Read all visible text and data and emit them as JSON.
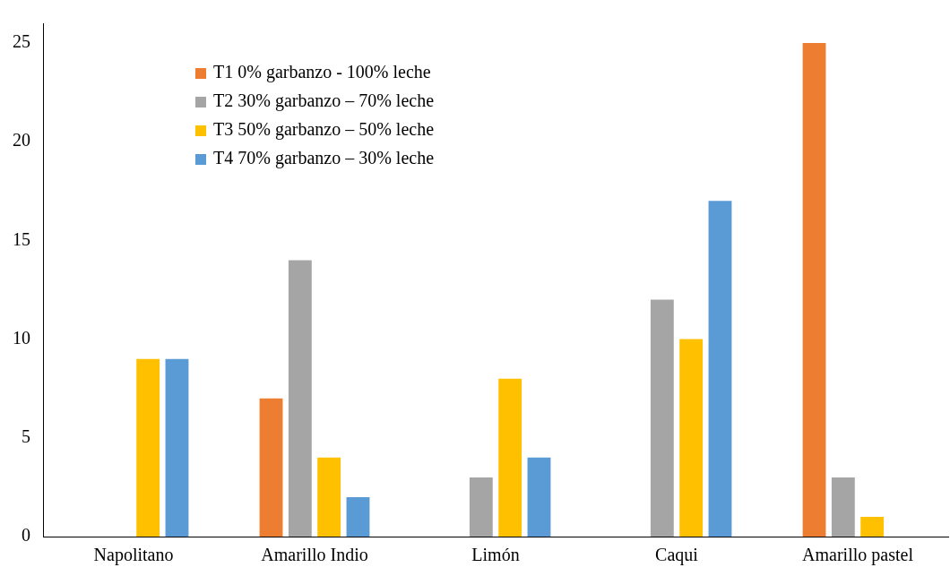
{
  "chart_data": {
    "type": "bar",
    "categories": [
      "Napolitano",
      "Amarillo Indio",
      "Limón",
      "Caqui",
      "Amarillo pastel"
    ],
    "series": [
      {
        "name": "T1 0% garbanzo - 100% leche",
        "color": "#ed7d31",
        "values": [
          0,
          7,
          0,
          0,
          25
        ]
      },
      {
        "name": "T2 30% garbanzo – 70% leche",
        "color": "#a5a5a5",
        "values": [
          0,
          14,
          3,
          12,
          3
        ]
      },
      {
        "name": "T3 50% garbanzo – 50% leche",
        "color": "#ffc000",
        "values": [
          9,
          4,
          8,
          10,
          1
        ]
      },
      {
        "name": "T4 70% garbanzo – 30% leche",
        "color": "#5b9bd5",
        "values": [
          9,
          2,
          4,
          17,
          0
        ]
      }
    ],
    "ylim": [
      0,
      26
    ],
    "yticks": [
      0,
      5,
      10,
      15,
      20,
      25
    ],
    "grid": false,
    "legend": "top left"
  }
}
